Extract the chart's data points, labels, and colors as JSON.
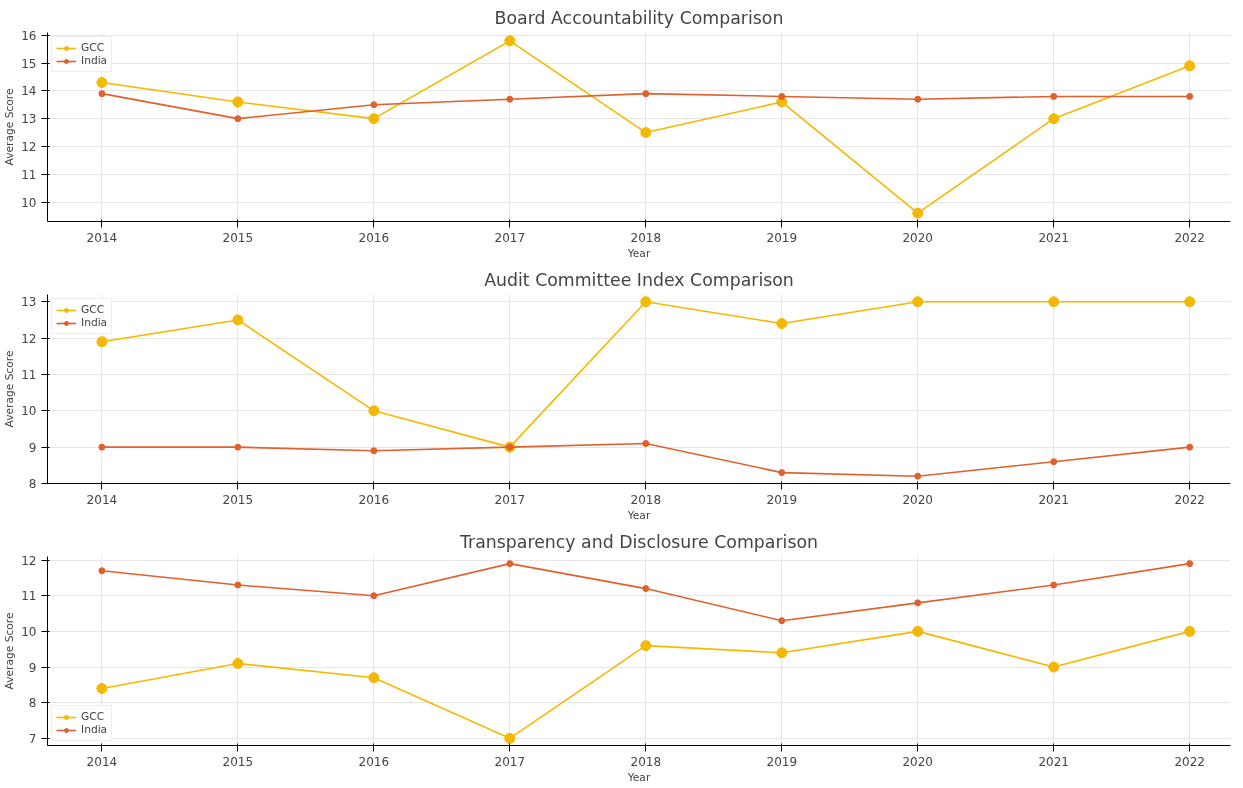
{
  "chart_data": [
    {
      "type": "line",
      "title": "Board Accountability Comparison",
      "xlabel": "Year",
      "ylabel": "Average Score",
      "x": [
        2014,
        2015,
        2016,
        2017,
        2018,
        2019,
        2020,
        2021,
        2022
      ],
      "xlim": [
        2013.6,
        2022.3
      ],
      "xticks": [
        2014,
        2015,
        2016,
        2017,
        2018,
        2019,
        2020,
        2021,
        2022
      ],
      "ylim": [
        9.3,
        16.1
      ],
      "yticks": [
        10,
        11,
        12,
        13,
        14,
        15,
        16
      ],
      "grid": true,
      "legend": "top left",
      "marker": "circle",
      "line_style": "solid",
      "series": [
        {
          "name": "GCC",
          "color": "#f5b800",
          "values": [
            14.3,
            13.6,
            13.0,
            15.8,
            12.5,
            13.6,
            9.6,
            13.0,
            14.9
          ]
        },
        {
          "name": "India",
          "color": "#e0602e",
          "values": [
            13.9,
            13.0,
            13.5,
            13.7,
            13.9,
            13.8,
            13.7,
            13.8,
            13.8
          ]
        }
      ]
    },
    {
      "type": "line",
      "title": "Audit Committee Index Comparison",
      "xlabel": "Year",
      "ylabel": "Average Score",
      "x": [
        2014,
        2015,
        2016,
        2017,
        2018,
        2019,
        2020,
        2021,
        2022
      ],
      "xlim": [
        2013.6,
        2022.3
      ],
      "xticks": [
        2014,
        2015,
        2016,
        2017,
        2018,
        2019,
        2020,
        2021,
        2022
      ],
      "ylim": [
        8.0,
        13.2
      ],
      "yticks": [
        8,
        9,
        10,
        11,
        12,
        13
      ],
      "grid": true,
      "legend": "top left",
      "marker": "circle",
      "line_style": "solid",
      "series": [
        {
          "name": "GCC",
          "color": "#f5b800",
          "values": [
            11.9,
            12.5,
            10.0,
            9.0,
            13.0,
            12.4,
            13.0,
            13.0,
            13.0
          ]
        },
        {
          "name": "India",
          "color": "#e0602e",
          "values": [
            9.0,
            9.0,
            8.9,
            9.0,
            9.1,
            8.3,
            8.2,
            8.6,
            9.0
          ]
        }
      ]
    },
    {
      "type": "line",
      "title": "Transparency and Disclosure Comparison",
      "xlabel": "Year",
      "ylabel": "Average Score",
      "x": [
        2014,
        2015,
        2016,
        2017,
        2018,
        2019,
        2020,
        2021,
        2022
      ],
      "xlim": [
        2013.6,
        2022.3
      ],
      "xticks": [
        2014,
        2015,
        2016,
        2017,
        2018,
        2019,
        2020,
        2021,
        2022
      ],
      "ylim": [
        6.8,
        12.1
      ],
      "yticks": [
        7,
        8,
        9,
        10,
        11,
        12
      ],
      "grid": true,
      "legend": "bottom left",
      "marker": "circle",
      "line_style": "solid",
      "series": [
        {
          "name": "GCC",
          "color": "#f5b800",
          "values": [
            8.4,
            9.1,
            8.7,
            7.0,
            9.6,
            9.4,
            10.0,
            9.0,
            10.0
          ]
        },
        {
          "name": "India",
          "color": "#e0602e",
          "values": [
            11.7,
            11.3,
            11.0,
            11.9,
            11.2,
            10.3,
            10.8,
            11.3,
            11.9
          ]
        }
      ]
    }
  ]
}
